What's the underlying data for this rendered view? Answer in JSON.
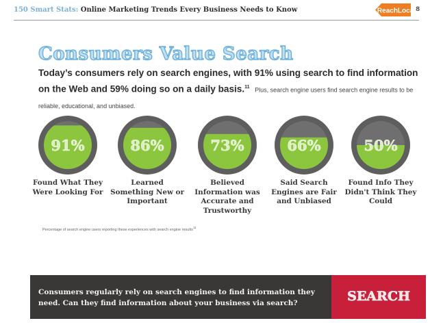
{
  "header": {
    "series": "150 Smart Stats:",
    "title": "Online Marketing Trends Every Business Needs to Know",
    "logo": "ReachLocal",
    "page_number": "8"
  },
  "headline": "Consumers Value Search",
  "lead": {
    "bold": "Today’s consumers rely on search engines, with 91% using search to find information on the Web and 59% doing so on a daily basis.",
    "superscript": "11",
    "rest": "Plus, search engine users find search engine results to be reliable, educational, and unbiased."
  },
  "stats": [
    {
      "value": "91%",
      "fill": 0.91,
      "label": "Found What They Were Looking For"
    },
    {
      "value": "86%",
      "fill": 0.86,
      "label": "Learned Something New or Important"
    },
    {
      "value": "73%",
      "fill": 0.73,
      "label": "Believed Information was Accurate and Trustworthy"
    },
    {
      "value": "66%",
      "fill": 0.66,
      "label": "Said Search Engines are Fair and Unbiased"
    },
    {
      "value": "50%",
      "fill": 0.5,
      "label": "Found Info They Didn't Think They Could"
    }
  ],
  "footnote": "Percentage of search engine users reporting these experiences with search engine results",
  "footnote_sup": "11",
  "banner": {
    "text": "Consumers regularly rely on search engines to find information they need. Can they find information about your business via search?",
    "button": "SEARCH"
  },
  "colors": {
    "green": "#8cc63e",
    "ring": "#5e5e5e",
    "red": "#c8203a",
    "blue": "#6db0da"
  }
}
